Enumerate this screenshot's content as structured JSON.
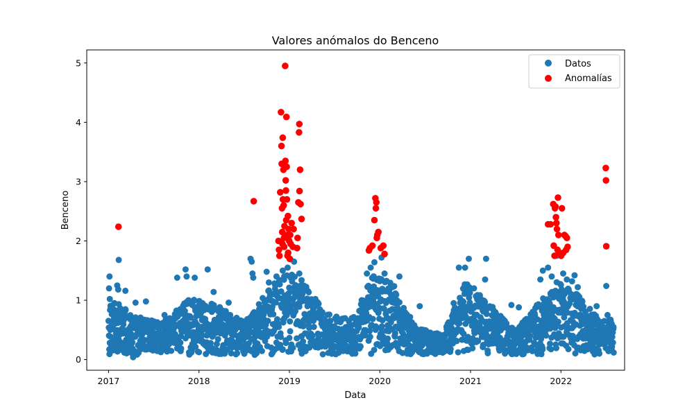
{
  "chart_data": {
    "type": "scatter",
    "title": "Valores anómalos do Benceno",
    "xlabel": "Data",
    "ylabel": "Benceno",
    "x_type": "date",
    "xlim": [
      "2016-10-05",
      "2022-09-15"
    ],
    "ylim": [
      -0.18,
      5.22
    ],
    "xticks": [
      "2017-01-01",
      "2018-01-01",
      "2019-01-01",
      "2020-01-01",
      "2021-01-01",
      "2022-01-01"
    ],
    "xtick_labels": [
      "2017",
      "2018",
      "2019",
      "2020",
      "2021",
      "2022"
    ],
    "yticks": [
      0,
      1,
      2,
      3,
      4,
      5
    ],
    "ytick_labels": [
      "0",
      "1",
      "2",
      "3",
      "4",
      "5"
    ],
    "legend_position": "top-right",
    "grid": false,
    "series": [
      {
        "name": "Datos",
        "color": "#1f77b4",
        "pattern": "daily observations 2017-01 to 2022-07, values mostly 0.1–1.7 with winter peaks",
        "points": [
          [
            "2017-01-03",
            1.2
          ],
          [
            "2017-01-05",
            1.4
          ],
          [
            "2017-01-06",
            1.02
          ],
          [
            "2017-01-08",
            0.5
          ],
          [
            "2017-01-10",
            0.85
          ],
          [
            "2017-01-15",
            0.25
          ],
          [
            "2017-01-20",
            0.6
          ],
          [
            "2017-01-25",
            0.95
          ],
          [
            "2017-02-05",
            1.25
          ],
          [
            "2017-02-09",
            1.18
          ],
          [
            "2017-02-11",
            1.68
          ],
          [
            "2017-03-01",
            0.7
          ],
          [
            "2017-03-10",
            1.16
          ],
          [
            "2017-03-20",
            0.4
          ],
          [
            "2017-04-05",
            0.12
          ],
          [
            "2017-04-10",
            0.04
          ],
          [
            "2017-04-20",
            0.96
          ],
          [
            "2017-06-01",
            0.98
          ],
          [
            "2017-06-15",
            0.3
          ],
          [
            "2017-08-15",
            0.75
          ],
          [
            "2017-10-05",
            1.38
          ],
          [
            "2017-11-08",
            1.52
          ],
          [
            "2017-11-12",
            1.4
          ],
          [
            "2017-11-20",
            1.0
          ],
          [
            "2017-12-15",
            1.38
          ],
          [
            "2018-01-15",
            0.95
          ],
          [
            "2018-02-05",
            1.52
          ],
          [
            "2018-03-01",
            1.14
          ],
          [
            "2018-04-01",
            0.15
          ],
          [
            "2018-05-01",
            0.96
          ],
          [
            "2018-06-01",
            0.6
          ],
          [
            "2018-07-01",
            0.35
          ],
          [
            "2018-07-15",
            0.68
          ],
          [
            "2018-07-28",
            1.7
          ],
          [
            "2018-08-02",
            1.65
          ],
          [
            "2018-08-05",
            1.45
          ],
          [
            "2018-08-08",
            1.38
          ],
          [
            "2018-08-14",
            0.08
          ],
          [
            "2018-09-01",
            0.4
          ],
          [
            "2018-09-20",
            0.55
          ],
          [
            "2018-10-01",
            1.48
          ],
          [
            "2018-10-10",
            1.3
          ],
          [
            "2018-11-10",
            1.4
          ],
          [
            "2018-12-05",
            1.5
          ],
          [
            "2018-12-25",
            1.55
          ],
          [
            "2019-01-05",
            1.69
          ],
          [
            "2019-01-20",
            1.65
          ],
          [
            "2019-02-10",
            1.45
          ],
          [
            "2019-02-20",
            0.1
          ],
          [
            "2019-03-15",
            0.9
          ],
          [
            "2019-04-10",
            0.55
          ],
          [
            "2019-05-10",
            0.3
          ],
          [
            "2019-06-15",
            0.65
          ],
          [
            "2019-07-15",
            0.2
          ],
          [
            "2019-08-20",
            0.45
          ],
          [
            "2019-09-10",
            0.7
          ],
          [
            "2019-10-20",
            1.0
          ],
          [
            "2019-11-10",
            1.45
          ],
          [
            "2019-11-25",
            1.55
          ],
          [
            "2019-12-10",
            1.64
          ],
          [
            "2020-01-08",
            1.72
          ],
          [
            "2020-01-20",
            1.45
          ],
          [
            "2020-02-05",
            1.2
          ],
          [
            "2020-02-20",
            0.85
          ],
          [
            "2020-03-20",
            1.4
          ],
          [
            "2020-04-15",
            0.6
          ],
          [
            "2020-05-10",
            0.2
          ],
          [
            "2020-06-10",
            0.9
          ],
          [
            "2020-07-10",
            0.1
          ],
          [
            "2020-08-10",
            0.3
          ],
          [
            "2020-09-10",
            0.15
          ],
          [
            "2020-10-10",
            0.5
          ],
          [
            "2020-10-25",
            0.95
          ],
          [
            "2020-11-15",
            1.55
          ],
          [
            "2020-12-10",
            1.55
          ],
          [
            "2020-12-25",
            1.7
          ],
          [
            "2021-01-15",
            1.2
          ],
          [
            "2021-02-10",
            0.9
          ],
          [
            "2021-03-01",
            1.35
          ],
          [
            "2021-03-05",
            1.7
          ],
          [
            "2021-04-01",
            0.85
          ],
          [
            "2021-04-20",
            0.4
          ],
          [
            "2021-05-20",
            0.1
          ],
          [
            "2021-06-15",
            0.92
          ],
          [
            "2021-07-15",
            0.88
          ],
          [
            "2021-08-10",
            0.2
          ],
          [
            "2021-09-20",
            0.87
          ],
          [
            "2021-10-10",
            1.35
          ],
          [
            "2021-10-20",
            1.5
          ],
          [
            "2021-11-10",
            1.55
          ],
          [
            "2021-11-25",
            1.4
          ],
          [
            "2021-12-15",
            1.75
          ],
          [
            "2022-01-10",
            1.45
          ],
          [
            "2022-01-25",
            1.35
          ],
          [
            "2022-02-15",
            1.32
          ],
          [
            "2022-02-25",
            1.42
          ],
          [
            "2022-03-10",
            1.22
          ],
          [
            "2022-04-10",
            0.45
          ],
          [
            "2022-05-10",
            0.25
          ],
          [
            "2022-05-25",
            0.9
          ],
          [
            "2022-06-05",
            0.1
          ],
          [
            "2022-06-20",
            0.55
          ],
          [
            "2022-06-25",
            0.65
          ],
          [
            "2022-07-03",
            1.24
          ],
          [
            "2022-07-08",
            0.75
          ],
          [
            "2022-07-15",
            0.5
          ],
          [
            "2022-07-25",
            0.6
          ],
          [
            "2022-08-01",
            0.55
          ]
        ]
      },
      {
        "name": "Anomalías",
        "color": "#ff0000",
        "points": [
          [
            "2017-02-10",
            2.24
          ],
          [
            "2018-08-10",
            2.67
          ],
          [
            "2018-11-18",
            2.0
          ],
          [
            "2018-11-20",
            1.85
          ],
          [
            "2018-11-22",
            1.75
          ],
          [
            "2018-11-25",
            2.82
          ],
          [
            "2018-11-28",
            4.17
          ],
          [
            "2018-11-30",
            3.6
          ],
          [
            "2018-12-01",
            3.3
          ],
          [
            "2018-12-02",
            2.55
          ],
          [
            "2018-12-03",
            2.15
          ],
          [
            "2018-12-04",
            1.95
          ],
          [
            "2018-12-05",
            3.74
          ],
          [
            "2018-12-06",
            2.7
          ],
          [
            "2018-12-08",
            3.2
          ],
          [
            "2018-12-09",
            2.6
          ],
          [
            "2018-12-10",
            2.05
          ],
          [
            "2018-12-11",
            1.9
          ],
          [
            "2018-12-12",
            2.25
          ],
          [
            "2018-12-13",
            3.25
          ],
          [
            "2018-12-15",
            4.95
          ],
          [
            "2018-12-16",
            3.35
          ],
          [
            "2018-12-17",
            3.02
          ],
          [
            "2018-12-18",
            2.85
          ],
          [
            "2018-12-19",
            2.35
          ],
          [
            "2018-12-20",
            4.09
          ],
          [
            "2018-12-21",
            3.25
          ],
          [
            "2018-12-22",
            2.7
          ],
          [
            "2018-12-23",
            2.1
          ],
          [
            "2018-12-24",
            1.75
          ],
          [
            "2018-12-26",
            2.42
          ],
          [
            "2018-12-27",
            1.8
          ],
          [
            "2018-12-29",
            2.2
          ],
          [
            "2018-12-31",
            2.0
          ],
          [
            "2019-01-02",
            1.7
          ],
          [
            "2019-01-04",
            2.1
          ],
          [
            "2019-01-06",
            1.95
          ],
          [
            "2019-01-10",
            2.3
          ],
          [
            "2019-01-15",
            1.9
          ],
          [
            "2019-01-18",
            2.2
          ],
          [
            "2019-02-01",
            1.88
          ],
          [
            "2019-02-03",
            2.05
          ],
          [
            "2019-02-06",
            2.65
          ],
          [
            "2019-02-09",
            3.83
          ],
          [
            "2019-02-10",
            3.97
          ],
          [
            "2019-02-11",
            2.84
          ],
          [
            "2019-02-13",
            3.2
          ],
          [
            "2019-02-15",
            2.62
          ],
          [
            "2019-02-19",
            2.37
          ],
          [
            "2019-11-18",
            1.84
          ],
          [
            "2019-11-22",
            1.88
          ],
          [
            "2019-12-02",
            1.92
          ],
          [
            "2019-12-10",
            2.35
          ],
          [
            "2019-12-14",
            2.72
          ],
          [
            "2019-12-16",
            2.55
          ],
          [
            "2019-12-18",
            2.65
          ],
          [
            "2019-12-20",
            2.05
          ],
          [
            "2019-12-22",
            2.1
          ],
          [
            "2019-12-26",
            2.15
          ],
          [
            "2020-01-05",
            1.88
          ],
          [
            "2020-01-15",
            1.92
          ],
          [
            "2020-01-20",
            1.78
          ],
          [
            "2021-11-10",
            2.28
          ],
          [
            "2021-11-20",
            2.28
          ],
          [
            "2021-12-01",
            2.62
          ],
          [
            "2021-12-03",
            1.92
          ],
          [
            "2021-12-06",
            1.75
          ],
          [
            "2021-12-08",
            2.55
          ],
          [
            "2021-12-10",
            2.58
          ],
          [
            "2021-12-12",
            2.4
          ],
          [
            "2021-12-14",
            2.3
          ],
          [
            "2021-12-16",
            2.2
          ],
          [
            "2021-12-18",
            1.85
          ],
          [
            "2021-12-20",
            2.73
          ],
          [
            "2021-12-22",
            2.1
          ],
          [
            "2021-12-26",
            1.8
          ],
          [
            "2022-01-02",
            1.75
          ],
          [
            "2022-01-05",
            2.55
          ],
          [
            "2022-01-10",
            1.8
          ],
          [
            "2022-01-15",
            2.1
          ],
          [
            "2022-01-20",
            2.08
          ],
          [
            "2022-01-22",
            1.85
          ],
          [
            "2022-01-25",
            2.05
          ],
          [
            "2022-01-28",
            1.9
          ],
          [
            "2022-07-01",
            3.23
          ],
          [
            "2022-07-02",
            3.02
          ],
          [
            "2022-07-03",
            1.91
          ]
        ]
      }
    ]
  }
}
